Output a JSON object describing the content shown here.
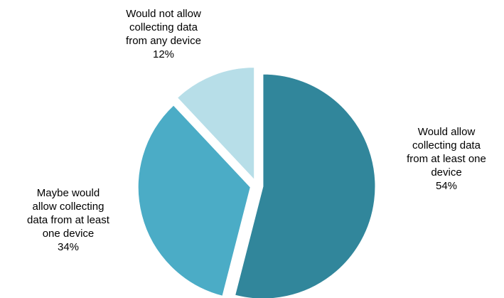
{
  "chart_data": {
    "type": "pie",
    "start_angle_deg": 0,
    "direction": "clockwise",
    "exploded": true,
    "legend": "none",
    "slices": [
      {
        "label_lines": [
          "Would allow",
          "collecting data",
          "from at least one",
          "device"
        ],
        "value_text": "54%",
        "value": 54,
        "color": "#31869b"
      },
      {
        "label_lines": [
          "Maybe would",
          "allow collecting",
          "data from at least",
          "one device"
        ],
        "value_text": "34%",
        "value": 34,
        "color": "#4bacc6"
      },
      {
        "label_lines": [
          "Would not allow",
          "collecting data",
          "from any device"
        ],
        "value_text": "12%",
        "value": 12,
        "color": "#b7dee8"
      }
    ]
  }
}
